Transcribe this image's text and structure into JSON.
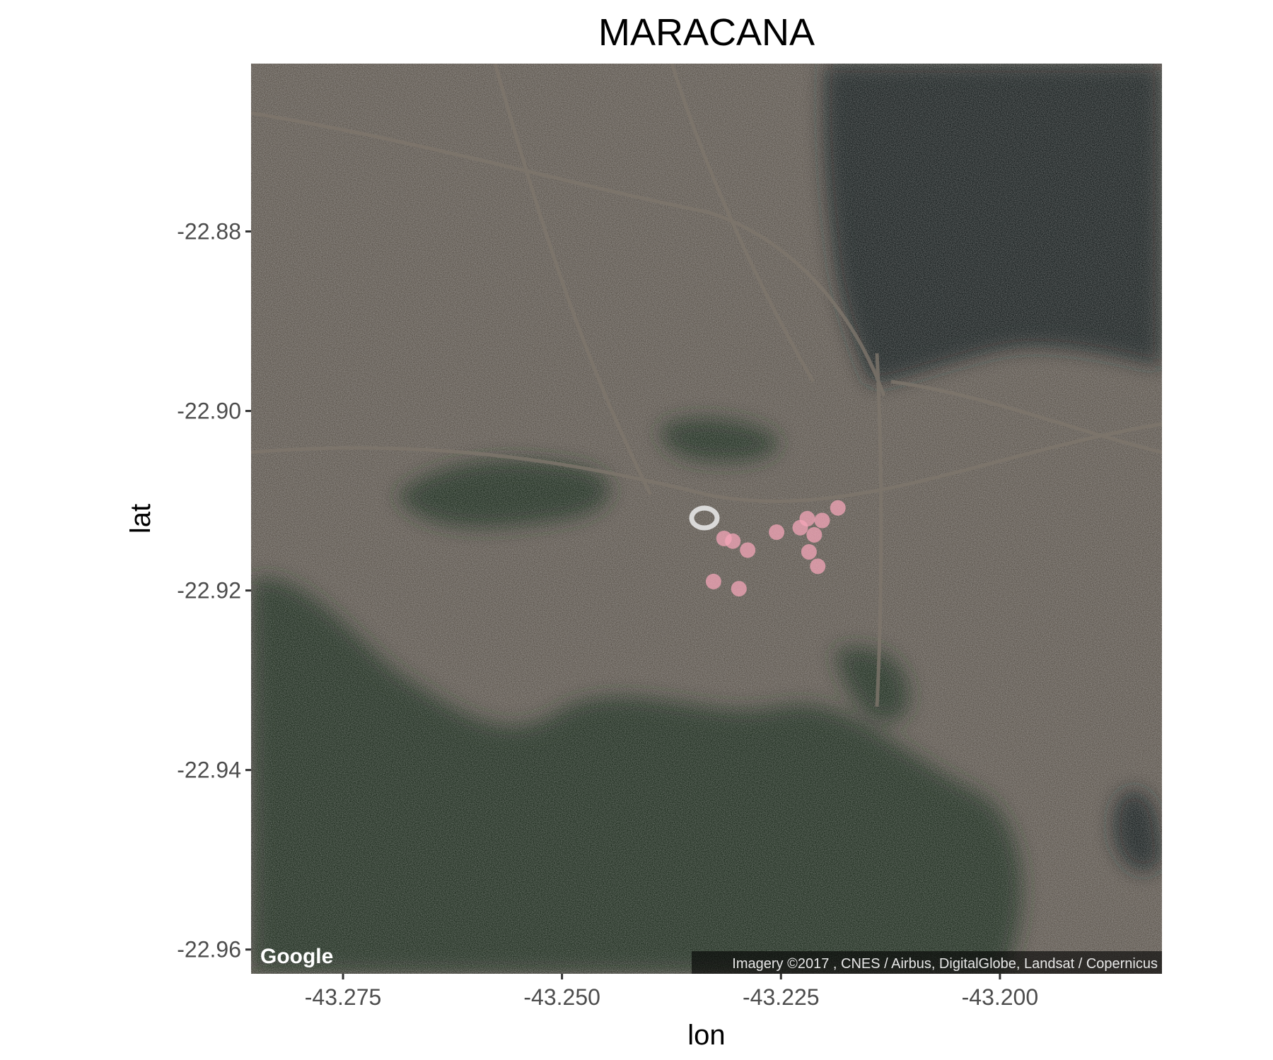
{
  "chart_data": {
    "type": "scatter",
    "title": "MARACANA",
    "xlabel": "lon",
    "ylabel": "lat",
    "xlim": [
      -43.2855,
      -43.1815
    ],
    "ylim": [
      -22.9627,
      -22.8613
    ],
    "x_ticks": [
      -43.275,
      -43.25,
      -43.225,
      -43.2
    ],
    "x_tick_labels": [
      "-43.275",
      "-43.250",
      "-43.225",
      "-43.200"
    ],
    "y_ticks": [
      -22.88,
      -22.9,
      -22.92,
      -22.94,
      -22.96
    ],
    "y_tick_labels": [
      "-22.88",
      "-22.90",
      "-22.92",
      "-22.94",
      "-22.96"
    ],
    "points": [
      {
        "lon": -43.2315,
        "lat": -22.9142
      },
      {
        "lon": -43.2305,
        "lat": -22.9145
      },
      {
        "lon": -43.2288,
        "lat": -22.9155
      },
      {
        "lon": -43.2255,
        "lat": -22.9135
      },
      {
        "lon": -43.2228,
        "lat": -22.913
      },
      {
        "lon": -43.222,
        "lat": -22.912
      },
      {
        "lon": -43.2203,
        "lat": -22.9122
      },
      {
        "lon": -43.2185,
        "lat": -22.9108
      },
      {
        "lon": -43.2212,
        "lat": -22.9138
      },
      {
        "lon": -43.2218,
        "lat": -22.9157
      },
      {
        "lon": -43.2208,
        "lat": -22.9173
      },
      {
        "lon": -43.2327,
        "lat": -22.919
      },
      {
        "lon": -43.2298,
        "lat": -22.9198
      }
    ],
    "point_color": "#f4a6b8",
    "grid": false,
    "legend": false
  },
  "map": {
    "basemap": "satellite",
    "land_color": "#5a534b",
    "forest_color": "#1f2b1d",
    "water_color": "#141a1d",
    "logo_text": "Google",
    "attribution": "Imagery ©2017 , CNES / Airbus, DigitalGlobe, Landsat / Copernicus"
  }
}
